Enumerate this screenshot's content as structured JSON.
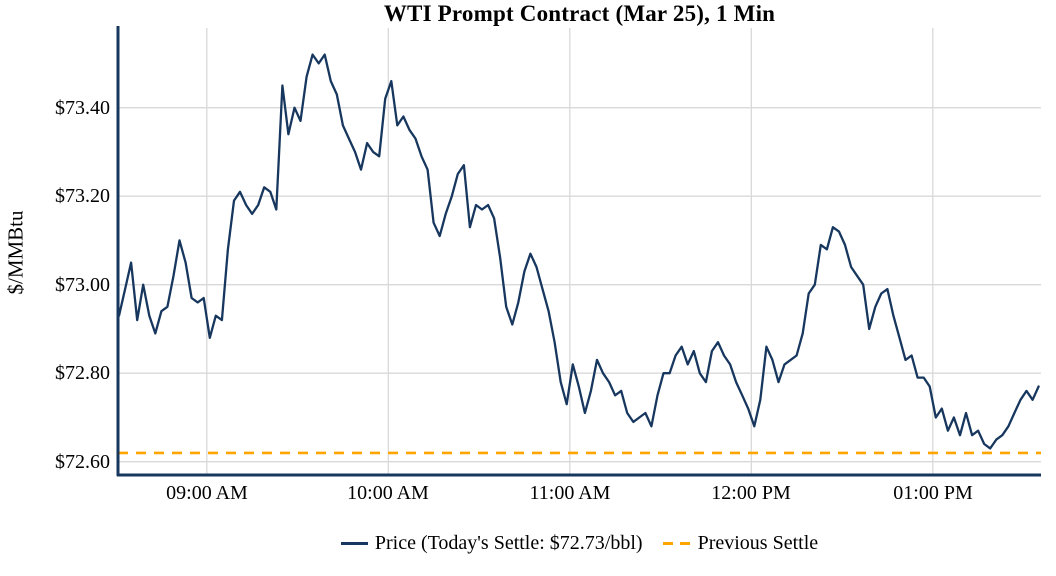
{
  "chart": {
    "title": "WTI Prompt Contract (Mar 25), 1 Min",
    "y_axis_label": "$/MMBtu"
  },
  "legend": {
    "price_label": "Price (Today's Settle: $72.73/bbl)",
    "previous_settle_label": "Previous Settle"
  },
  "colors": {
    "price_line": "#17375E",
    "previous_settle_line": "#FFA500",
    "gridline": "#D9D9D9",
    "axis": "#17375E",
    "text": "#000000"
  },
  "chart_data": {
    "type": "line",
    "title": "WTI Prompt Contract (Mar 25), 1 Min",
    "xlabel": "",
    "ylabel": "$/MMBtu",
    "ylim": [
      72.57,
      73.58
    ],
    "grid": true,
    "legend_position": "bottom-center",
    "y_axis": {
      "ticks": [
        {
          "label": "$73.40",
          "value": 73.4
        },
        {
          "label": "$73.20",
          "value": 73.2
        },
        {
          "label": "$73.00",
          "value": 73.0
        },
        {
          "label": "$72.80",
          "value": 72.8
        },
        {
          "label": "$72.60",
          "value": 72.6
        }
      ]
    },
    "x_axis": {
      "ticks": [
        {
          "label": "09:00 AM",
          "minute": 30
        },
        {
          "label": "10:00 AM",
          "minute": 90
        },
        {
          "label": "11:00 AM",
          "minute": 150
        },
        {
          "label": "12:00 PM",
          "minute": 210
        },
        {
          "label": "01:00 PM",
          "minute": 270
        }
      ]
    },
    "previous_settle": {
      "name": "Previous Settle",
      "value": 72.62,
      "style": "dashed"
    },
    "price": {
      "name": "Price (Today's Settle: $72.73/bbl)",
      "today_settle": 72.73,
      "start_time": "08:31 AM",
      "start_minute_offset": 1,
      "interval_minutes": 2,
      "values": [
        72.93,
        72.99,
        73.05,
        72.92,
        73.0,
        72.93,
        72.89,
        72.94,
        72.95,
        73.02,
        73.1,
        73.05,
        72.97,
        72.96,
        72.97,
        72.88,
        72.93,
        72.92,
        73.08,
        73.19,
        73.21,
        73.18,
        73.16,
        73.18,
        73.22,
        73.21,
        73.17,
        73.45,
        73.34,
        73.4,
        73.37,
        73.47,
        73.52,
        73.5,
        73.52,
        73.46,
        73.43,
        73.36,
        73.33,
        73.3,
        73.26,
        73.32,
        73.3,
        73.29,
        73.42,
        73.46,
        73.36,
        73.38,
        73.35,
        73.33,
        73.29,
        73.26,
        73.14,
        73.11,
        73.16,
        73.2,
        73.25,
        73.27,
        73.13,
        73.18,
        73.17,
        73.18,
        73.15,
        73.06,
        72.95,
        72.91,
        72.96,
        73.03,
        73.07,
        73.04,
        72.99,
        72.94,
        72.87,
        72.78,
        72.73,
        72.82,
        72.77,
        72.71,
        72.76,
        72.83,
        72.8,
        72.78,
        72.75,
        72.76,
        72.71,
        72.69,
        72.7,
        72.71,
        72.68,
        72.75,
        72.8,
        72.8,
        72.84,
        72.86,
        72.82,
        72.85,
        72.8,
        72.78,
        72.85,
        72.87,
        72.84,
        72.82,
        72.78,
        72.75,
        72.72,
        72.68,
        72.74,
        72.86,
        72.83,
        72.78,
        72.82,
        72.83,
        72.84,
        72.89,
        72.98,
        73.0,
        73.09,
        73.08,
        73.13,
        73.12,
        73.09,
        73.04,
        73.02,
        73.0,
        72.9,
        72.95,
        72.98,
        72.99,
        72.93,
        72.88,
        72.83,
        72.84,
        72.79,
        72.79,
        72.77,
        72.7,
        72.72,
        72.67,
        72.7,
        72.66,
        72.71,
        72.66,
        72.67,
        72.64,
        72.63,
        72.65,
        72.66,
        72.68,
        72.71,
        72.74,
        72.76,
        72.74,
        72.77
      ]
    }
  }
}
